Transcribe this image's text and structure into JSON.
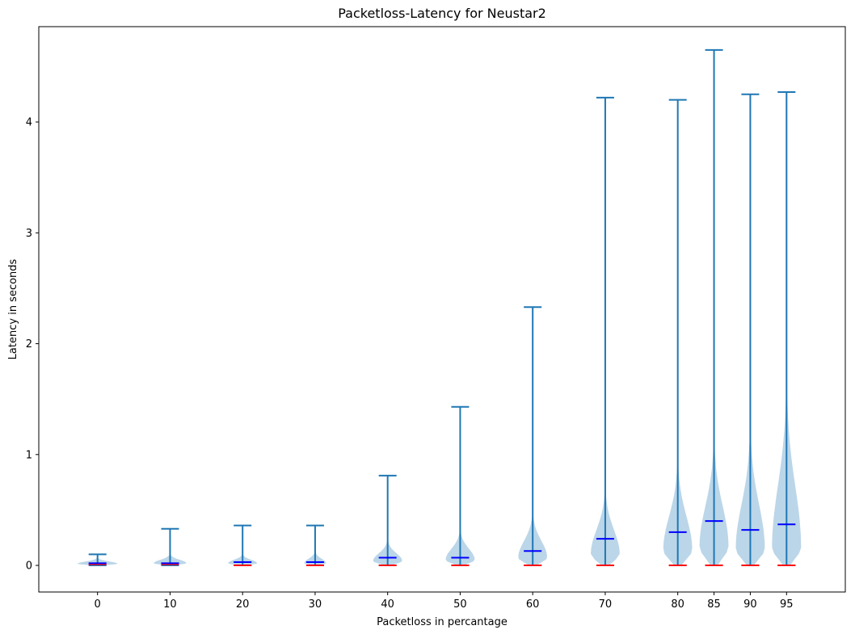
{
  "chart_data": {
    "type": "violin",
    "title": "Packetloss-Latency for Neustar2",
    "xlabel": "Packetloss in percantage",
    "ylabel": "Latency in seconds",
    "ylim": [
      -0.24,
      4.86
    ],
    "yticks": [
      0,
      1,
      2,
      3,
      4
    ],
    "x": [
      0,
      10,
      20,
      30,
      40,
      50,
      60,
      70,
      80,
      85,
      90,
      95
    ],
    "stats": [
      {
        "x": 0,
        "min": 0.0,
        "max": 0.1,
        "mean": 0.02,
        "median": 0.01,
        "peak": 0.015,
        "density_width": 5.5,
        "spread": 0.02
      },
      {
        "x": 10,
        "min": 0.0,
        "max": 0.33,
        "mean": 0.02,
        "median": 0.01,
        "peak": 0.02,
        "density_width": 4.5,
        "spread": 0.03
      },
      {
        "x": 20,
        "min": 0.0,
        "max": 0.36,
        "mean": 0.03,
        "median": 0.0,
        "peak": 0.02,
        "density_width": 4.0,
        "spread": 0.03
      },
      {
        "x": 30,
        "min": 0.0,
        "max": 0.36,
        "mean": 0.03,
        "median": 0.0,
        "peak": 0.02,
        "density_width": 3.0,
        "spread": 0.04
      },
      {
        "x": 40,
        "min": 0.0,
        "max": 0.81,
        "mean": 0.07,
        "median": 0.0,
        "peak": 0.04,
        "density_width": 4.0,
        "spread": 0.07
      },
      {
        "x": 50,
        "min": 0.0,
        "max": 1.43,
        "mean": 0.07,
        "median": 0.0,
        "peak": 0.05,
        "density_width": 4.0,
        "spread": 0.1
      },
      {
        "x": 60,
        "min": 0.0,
        "max": 2.33,
        "mean": 0.13,
        "median": 0.0,
        "peak": 0.07,
        "density_width": 4.0,
        "spread": 0.15
      },
      {
        "x": 70,
        "min": 0.0,
        "max": 4.22,
        "mean": 0.24,
        "median": 0.0,
        "peak": 0.1,
        "density_width": 4.0,
        "spread": 0.22
      },
      {
        "x": 80,
        "min": 0.0,
        "max": 4.2,
        "mean": 0.3,
        "median": 0.0,
        "peak": 0.14,
        "density_width": 4.0,
        "spread": 0.3
      },
      {
        "x": 85,
        "min": 0.0,
        "max": 4.65,
        "mean": 0.4,
        "median": 0.0,
        "peak": 0.17,
        "density_width": 4.0,
        "spread": 0.36
      },
      {
        "x": 90,
        "min": 0.0,
        "max": 4.25,
        "mean": 0.32,
        "median": 0.0,
        "peak": 0.15,
        "density_width": 4.0,
        "spread": 0.4
      },
      {
        "x": 95,
        "min": 0.0,
        "max": 4.27,
        "mean": 0.37,
        "median": 0.0,
        "peak": 0.16,
        "density_width": 4.0,
        "spread": 0.55
      }
    ],
    "colors": {
      "body": "#1f77b4",
      "body_opacity": 0.3,
      "extrema": "#1f77b4",
      "mean": "#0000ff",
      "median": "#ff0000"
    },
    "grid": false,
    "legend": "none"
  }
}
